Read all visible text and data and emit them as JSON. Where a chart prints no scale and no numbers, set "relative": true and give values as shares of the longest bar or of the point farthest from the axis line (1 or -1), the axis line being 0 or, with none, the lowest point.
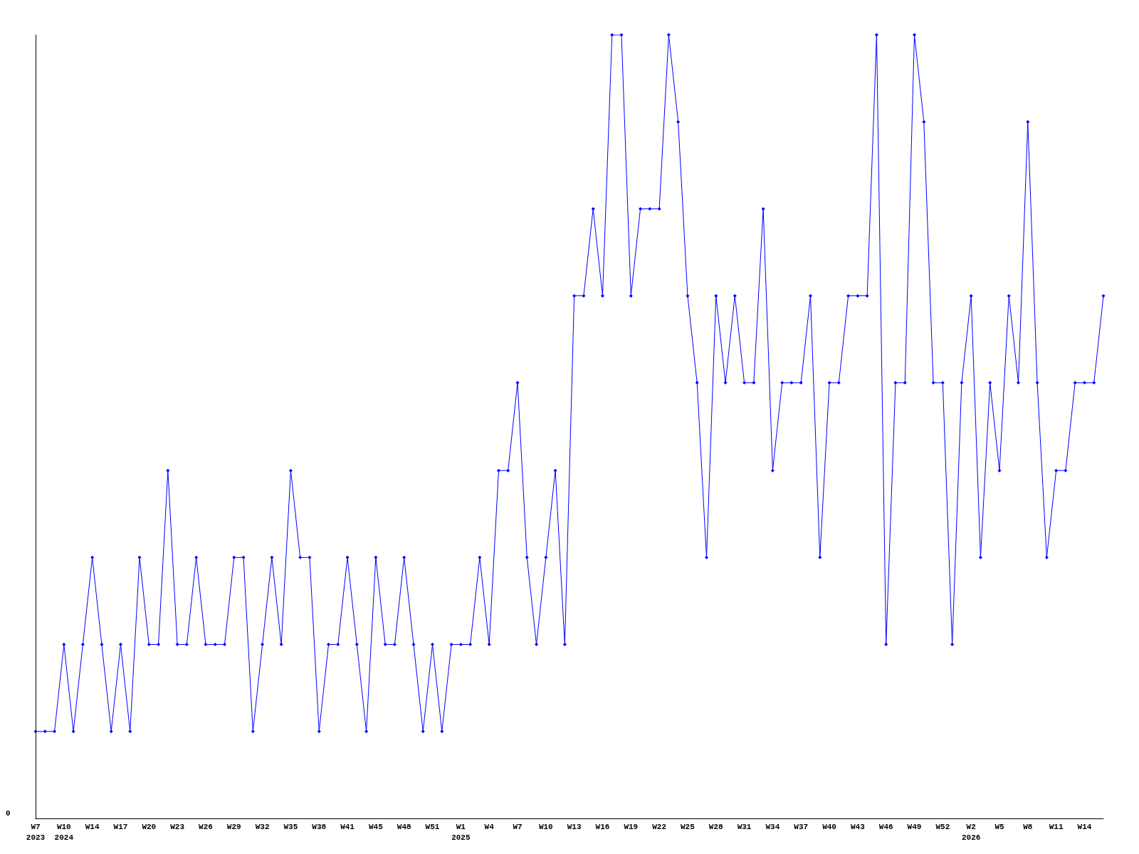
{
  "chart_data": {
    "type": "line",
    "relative": true,
    "annotations": [
      "0"
    ],
    "color": "#0000ff",
    "marker": "diamond",
    "line_style": "solid",
    "grid": false,
    "categories": [
      "W7\n2023",
      null,
      null,
      "W10\n2024",
      null,
      null,
      "W14",
      null,
      null,
      "W17",
      null,
      null,
      "W20",
      null,
      null,
      "W23",
      null,
      null,
      "W26",
      null,
      null,
      "W29",
      null,
      null,
      "W32",
      null,
      null,
      "W35",
      null,
      null,
      "W38",
      null,
      null,
      "W41",
      null,
      null,
      "W45",
      null,
      null,
      "W48",
      null,
      null,
      "W51",
      null,
      null,
      "W1\n2025",
      null,
      null,
      "W4",
      null,
      null,
      "W7",
      null,
      null,
      "W10",
      null,
      null,
      "W13",
      null,
      null,
      "W16",
      null,
      null,
      "W19",
      null,
      null,
      "W22",
      null,
      null,
      "W25",
      null,
      null,
      "W28",
      null,
      null,
      "W31",
      null,
      null,
      "W34",
      null,
      null,
      "W37",
      null,
      null,
      "W40",
      null,
      null,
      "W43",
      null,
      null,
      "W46",
      null,
      null,
      "W49",
      null,
      null,
      "W52",
      null,
      null,
      "W2\n2026",
      null,
      null,
      "W5",
      null,
      null,
      "W8",
      null,
      null,
      "W11",
      null,
      null,
      "W14",
      null,
      null
    ],
    "values": [
      0.111,
      0.111,
      0.111,
      0.222,
      0.111,
      0.222,
      0.333,
      0.222,
      0.111,
      0.222,
      0.111,
      0.333,
      0.222,
      0.222,
      0.444,
      0.222,
      0.222,
      0.333,
      0.222,
      0.222,
      0.222,
      0.333,
      0.333,
      0.111,
      0.222,
      0.333,
      0.222,
      0.444,
      0.333,
      0.333,
      0.111,
      0.222,
      0.222,
      0.333,
      0.222,
      0.111,
      0.333,
      0.222,
      0.222,
      0.333,
      0.222,
      0.111,
      0.222,
      0.111,
      0.222,
      0.222,
      0.222,
      0.333,
      0.222,
      0.444,
      0.444,
      0.556,
      0.333,
      0.222,
      0.333,
      0.444,
      0.222,
      0.667,
      0.667,
      0.778,
      0.667,
      1,
      1,
      0.667,
      0.778,
      0.778,
      0.778,
      1,
      0.889,
      0.667,
      0.556,
      0.333,
      0.667,
      0.556,
      0.667,
      0.556,
      0.556,
      0.778,
      0.444,
      0.556,
      0.556,
      0.556,
      0.667,
      0.333,
      0.556,
      0.556,
      0.667,
      0.667,
      0.667,
      1,
      0.222,
      0.556,
      0.556,
      1,
      0.889,
      0.556,
      0.556,
      0.222,
      0.556,
      0.667,
      0.333,
      0.556,
      0.444,
      0.667,
      0.556,
      0.889,
      0.556,
      0.333,
      0.444,
      0.444,
      0.556,
      0.556,
      0.556,
      0.667
    ]
  }
}
